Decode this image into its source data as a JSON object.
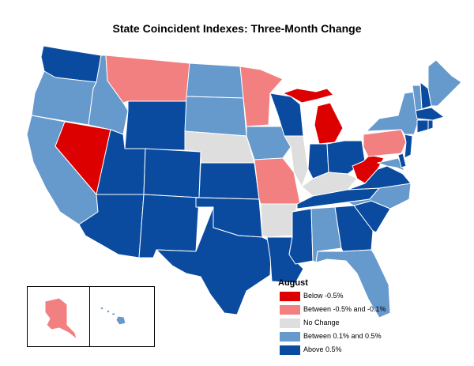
{
  "title": "State Coincident Indexes: Three-Month Change",
  "legend": {
    "title": "August",
    "items": [
      {
        "label": "Below -0.5%",
        "color": "#dd0000"
      },
      {
        "label": "Between -0.5% and -0.1%",
        "color": "#f28080"
      },
      {
        "label": "No Change",
        "color": "#dedede"
      },
      {
        "label": "Between 0.1% and 0.5%",
        "color": "#6699cc"
      },
      {
        "label": "Above 0.5%",
        "color": "#0a4ba0"
      }
    ]
  },
  "states": {
    "WA": "Above 0.5%",
    "OR": "Between 0.1% and 0.5%",
    "CA": "Between 0.1% and 0.5%",
    "ID": "Between 0.1% and 0.5%",
    "NV": "Below -0.5%",
    "MT": "Between -0.5% and -0.1%",
    "WY": "Above 0.5%",
    "UT": "Above 0.5%",
    "AZ": "Above 0.5%",
    "CO": "Above 0.5%",
    "NM": "Above 0.5%",
    "ND": "Between 0.1% and 0.5%",
    "SD": "Between 0.1% and 0.5%",
    "NE": "No Change",
    "KS": "Above 0.5%",
    "OK": "Above 0.5%",
    "TX": "Above 0.5%",
    "MN": "Between -0.5% and -0.1%",
    "IA": "Between 0.1% and 0.5%",
    "MO": "Between -0.5% and -0.1%",
    "AR": "No Change",
    "LA": "Above 0.5%",
    "WI": "Above 0.5%",
    "IL": "No Change",
    "MI": "Below -0.5%",
    "IN": "Above 0.5%",
    "OH": "Above 0.5%",
    "KY": "No Change",
    "TN": "Above 0.5%",
    "MS": "Above 0.5%",
    "AL": "Between 0.1% and 0.5%",
    "GA": "Above 0.5%",
    "FL": "Between 0.1% and 0.5%",
    "SC": "Above 0.5%",
    "NC": "Between 0.1% and 0.5%",
    "VA": "Above 0.5%",
    "WV": "Below -0.5%",
    "PA": "Between -0.5% and -0.1%",
    "NY": "Between 0.1% and 0.5%",
    "VT": "Between 0.1% and 0.5%",
    "NH": "Above 0.5%",
    "ME": "Between 0.1% and 0.5%",
    "MA": "Above 0.5%",
    "CT": "Above 0.5%",
    "RI": "Above 0.5%",
    "NJ": "Above 0.5%",
    "DE": "Above 0.5%",
    "MD": "Between 0.1% and 0.5%",
    "AK": "Between -0.5% and -0.1%",
    "HI": "Between 0.1% and 0.5%"
  }
}
